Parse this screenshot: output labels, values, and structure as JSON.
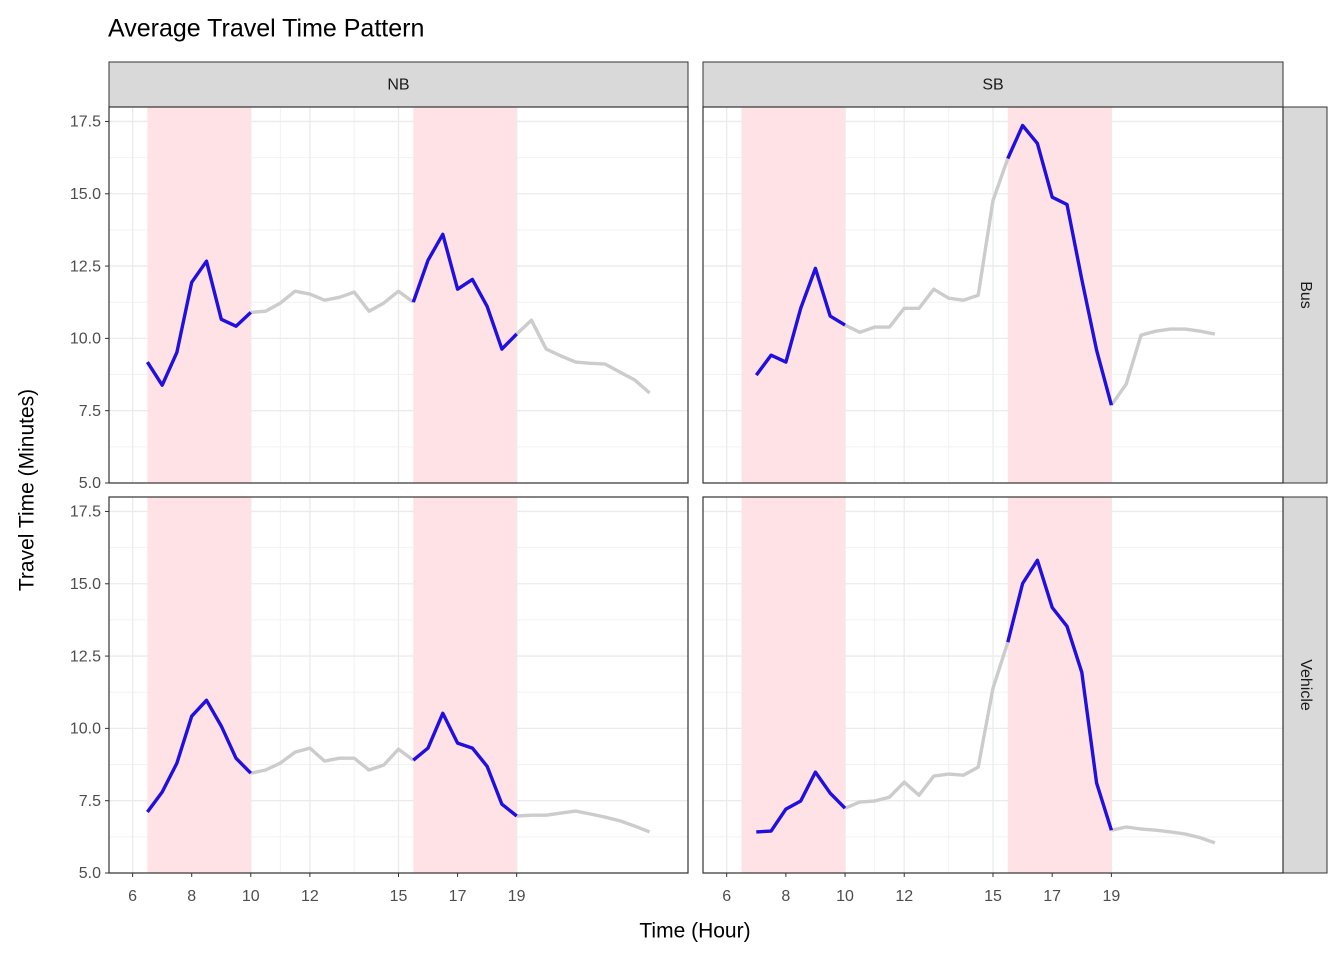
{
  "chart_data": {
    "type": "line",
    "title": "Average Travel Time Pattern",
    "x_label": "Time (Hour)",
    "y_label": "Travel Time (Minutes)",
    "xlim": [
      5.2,
      24.8
    ],
    "xticks": [
      6,
      8,
      10,
      12,
      15,
      17,
      19
    ],
    "ylim": [
      5,
      18
    ],
    "yticks": [
      {
        "value": 5,
        "label": "5.0"
      },
      7.5,
      {
        "value": 10,
        "label": "10.0"
      },
      12.5,
      {
        "value": 15,
        "label": "15.0"
      },
      17.5
    ],
    "grid": true,
    "peak_periods": [
      [
        6.5,
        10
      ],
      [
        15.5,
        19
      ]
    ],
    "peak_color": "#1f0fe0",
    "offpeak_color": "#cccccc",
    "shade_color": "#ffe2e5",
    "columns": [
      "NB",
      "SB"
    ],
    "rows": [
      {
        "name": "Bus",
        "series": [
          {
            "x": [
              6.5,
              7,
              7.5,
              8,
              8.5,
              9,
              9.5,
              10,
              10.5,
              11,
              11.5,
              12,
              12.5,
              13,
              13.5,
              14,
              14.5,
              15,
              15.5,
              16,
              16.5,
              17,
              17.5,
              18,
              18.5,
              19,
              19.5,
              20,
              20.5,
              21,
              21.5,
              22,
              22.5,
              23,
              23.5
            ],
            "values": [
              9.18,
              8.38,
              9.52,
              11.94,
              12.67,
              10.66,
              10.42,
              10.9,
              10.94,
              11.22,
              11.63,
              11.53,
              11.32,
              11.42,
              11.6,
              10.94,
              11.22,
              11.63,
              11.25,
              12.7,
              13.6,
              11.7,
              12.04,
              11.11,
              9.63,
              10.15,
              10.63,
              9.63,
              9.39,
              9.18,
              9.14,
              9.11,
              8.83,
              8.56,
              8.11
            ]
          },
          {
            "x": [
              7,
              7.5,
              8,
              8.5,
              9,
              9.5,
              10,
              10.5,
              11,
              11.5,
              12,
              12.5,
              13,
              13.5,
              14,
              14.5,
              15,
              15.5,
              16,
              16.5,
              17,
              17.5,
              18,
              18.5,
              19,
              19.5,
              20,
              20.5,
              21,
              21.5,
              22,
              22.5
            ],
            "values": [
              8.73,
              9.42,
              9.18,
              11.04,
              12.42,
              10.77,
              10.46,
              10.21,
              10.39,
              10.39,
              11.04,
              11.04,
              11.7,
              11.39,
              11.32,
              11.49,
              14.77,
              16.22,
              17.36,
              16.74,
              14.88,
              14.63,
              12.04,
              9.59,
              7.69,
              8.42,
              10.11,
              10.25,
              10.32,
              10.32,
              10.25,
              10.15
            ]
          }
        ]
      },
      {
        "name": "Vehicle",
        "series": [
          {
            "x": [
              6.5,
              7,
              7.5,
              8,
              8.5,
              9,
              9.5,
              10,
              10.5,
              11,
              11.5,
              12,
              12.5,
              13,
              13.5,
              14,
              14.5,
              15,
              15.5,
              16,
              16.5,
              17,
              17.5,
              18,
              18.5,
              19,
              19.5,
              20,
              20.5,
              21,
              21.5,
              22,
              22.5,
              23,
              23.5
            ],
            "values": [
              7.11,
              7.8,
              8.8,
              10.42,
              10.97,
              10.08,
              8.97,
              8.45,
              8.56,
              8.8,
              9.18,
              9.32,
              8.87,
              8.97,
              8.97,
              8.56,
              8.73,
              9.28,
              8.9,
              9.32,
              10.52,
              9.49,
              9.32,
              8.69,
              7.38,
              6.97,
              7.0,
              7.0,
              7.07,
              7.14,
              7.04,
              6.93,
              6.8,
              6.62,
              6.42
            ]
          },
          {
            "x": [
              7,
              7.5,
              8,
              8.5,
              9,
              9.5,
              10,
              10.5,
              11,
              11.5,
              12,
              12.5,
              13,
              13.5,
              14,
              14.5,
              15,
              15.5,
              16,
              16.5,
              17,
              17.5,
              18,
              18.5,
              19,
              19.5,
              20,
              20.5,
              21,
              21.5,
              22,
              22.5
            ],
            "values": [
              6.42,
              6.45,
              7.21,
              7.49,
              8.49,
              7.76,
              7.24,
              7.45,
              7.49,
              7.62,
              8.14,
              7.69,
              8.35,
              8.42,
              8.38,
              8.66,
              11.39,
              12.98,
              15.01,
              15.81,
              14.18,
              13.53,
              11.94,
              8.11,
              6.48,
              6.59,
              6.52,
              6.48,
              6.42,
              6.35,
              6.22,
              6.04
            ]
          }
        ]
      }
    ]
  }
}
